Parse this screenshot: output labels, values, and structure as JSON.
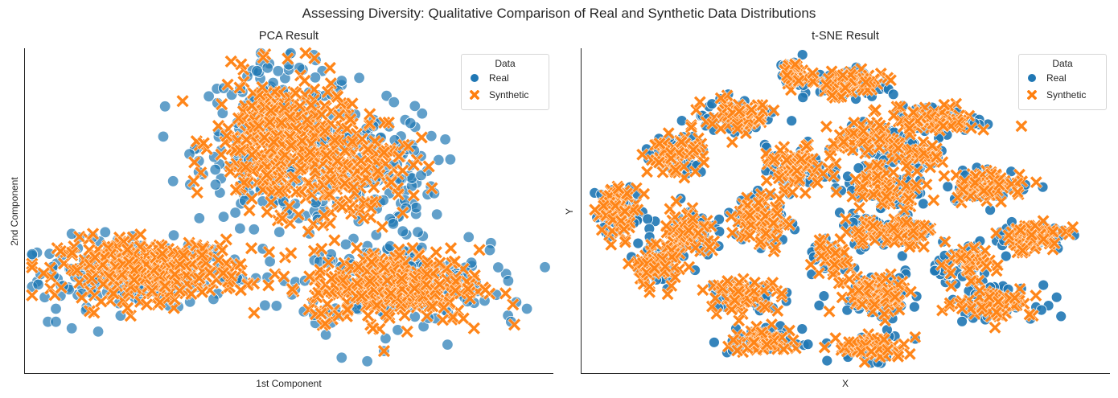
{
  "figure": {
    "title": "Assessing Diversity: Qualitative Comparison of Real and Synthetic Data Distributions"
  },
  "legend": {
    "title": "Data",
    "entries": [
      "Real",
      "Synthetic"
    ]
  },
  "colors": {
    "real": "#1f77b4",
    "synthetic": "#ff7f0e"
  },
  "chart_data": [
    {
      "type": "scatter",
      "title": "PCA Result",
      "xlabel": "1st Component",
      "ylabel": "2nd Component",
      "ticks": "none",
      "grid": false,
      "legend_position": "top-right",
      "series": [
        {
          "name": "Real",
          "marker": "circle",
          "color": "#1f77b4",
          "alpha": 0.7,
          "clusters": [
            {
              "x": 0.21,
              "y": 0.31,
              "sx": 0.09,
              "sy": 0.05,
              "n": 230
            },
            {
              "x": 0.48,
              "y": 0.7,
              "sx": 0.075,
              "sy": 0.12,
              "n": 260
            },
            {
              "x": 0.7,
              "y": 0.28,
              "sx": 0.09,
              "sy": 0.06,
              "n": 230
            },
            {
              "x": 0.64,
              "y": 0.62,
              "sx": 0.07,
              "sy": 0.1,
              "n": 140
            }
          ],
          "outliers": [
            [
              0.045,
              0.16
            ],
            [
              0.06,
              0.16
            ],
            [
              0.09,
              0.14
            ],
            [
              0.14,
              0.13
            ],
            [
              0.33,
              0.62
            ],
            [
              0.44,
              0.93
            ],
            [
              0.46,
              0.94
            ],
            [
              0.48,
              0.93
            ],
            [
              0.5,
              0.95
            ],
            [
              0.52,
              0.94
            ],
            [
              0.55,
              0.91
            ],
            [
              0.6,
              0.9
            ],
            [
              0.66,
              0.76
            ],
            [
              0.72,
              0.78
            ],
            [
              0.73,
              0.77
            ],
            [
              0.75,
              0.61
            ],
            [
              0.78,
              0.49
            ],
            [
              0.84,
              0.42
            ],
            [
              0.88,
              0.38
            ],
            [
              0.93,
              0.22
            ],
            [
              0.95,
              0.2
            ],
            [
              0.92,
              0.16
            ],
            [
              0.6,
              0.05
            ],
            [
              0.68,
              0.07
            ],
            [
              0.8,
              0.09
            ],
            [
              0.57,
              0.12
            ],
            [
              0.06,
              0.2
            ],
            [
              0.09,
              0.43
            ],
            [
              0.13,
              0.42
            ]
          ]
        },
        {
          "name": "Synthetic",
          "marker": "x",
          "color": "#ff7f0e",
          "alpha": 0.95,
          "clusters": [
            {
              "x": 0.24,
              "y": 0.32,
              "sx": 0.085,
              "sy": 0.045,
              "n": 330
            },
            {
              "x": 0.48,
              "y": 0.71,
              "sx": 0.06,
              "sy": 0.1,
              "n": 330
            },
            {
              "x": 0.7,
              "y": 0.27,
              "sx": 0.08,
              "sy": 0.055,
              "n": 320
            },
            {
              "x": 0.62,
              "y": 0.64,
              "sx": 0.055,
              "sy": 0.085,
              "n": 150
            }
          ],
          "outliers": [
            [
              0.45,
              0.88
            ],
            [
              0.53,
              0.9
            ],
            [
              0.62,
              0.83
            ],
            [
              0.68,
              0.68
            ],
            [
              0.83,
              0.17
            ],
            [
              0.85,
              0.14
            ],
            [
              0.68,
              0.07
            ],
            [
              0.13,
              0.43
            ]
          ]
        }
      ]
    },
    {
      "type": "scatter",
      "title": "t-SNE Result",
      "xlabel": "X",
      "ylabel": "Y",
      "ticks": "none",
      "grid": false,
      "legend_position": "top-right",
      "series": [
        {
          "name": "Real",
          "marker": "circle",
          "color": "#1f77b4",
          "clusters": [
            {
              "x": 0.4,
              "y": 0.92,
              "sx": 0.012,
              "sy": 0.022,
              "n": 30
            },
            {
              "x": 0.5,
              "y": 0.89,
              "sx": 0.04,
              "sy": 0.025,
              "n": 55
            },
            {
              "x": 0.67,
              "y": 0.78,
              "sx": 0.04,
              "sy": 0.022,
              "n": 50
            },
            {
              "x": 0.3,
              "y": 0.79,
              "sx": 0.035,
              "sy": 0.03,
              "n": 55
            },
            {
              "x": 0.55,
              "y": 0.72,
              "sx": 0.04,
              "sy": 0.035,
              "n": 60
            },
            {
              "x": 0.64,
              "y": 0.67,
              "sx": 0.02,
              "sy": 0.018,
              "n": 30
            },
            {
              "x": 0.18,
              "y": 0.67,
              "sx": 0.03,
              "sy": 0.03,
              "n": 50
            },
            {
              "x": 0.41,
              "y": 0.63,
              "sx": 0.03,
              "sy": 0.035,
              "n": 55
            },
            {
              "x": 0.58,
              "y": 0.58,
              "sx": 0.04,
              "sy": 0.035,
              "n": 60
            },
            {
              "x": 0.77,
              "y": 0.58,
              "sx": 0.04,
              "sy": 0.025,
              "n": 55
            },
            {
              "x": 0.07,
              "y": 0.5,
              "sx": 0.022,
              "sy": 0.04,
              "n": 55
            },
            {
              "x": 0.2,
              "y": 0.44,
              "sx": 0.025,
              "sy": 0.04,
              "n": 55
            },
            {
              "x": 0.34,
              "y": 0.47,
              "sx": 0.025,
              "sy": 0.045,
              "n": 65
            },
            {
              "x": 0.58,
              "y": 0.44,
              "sx": 0.045,
              "sy": 0.025,
              "n": 60
            },
            {
              "x": 0.85,
              "y": 0.42,
              "sx": 0.035,
              "sy": 0.025,
              "n": 55
            },
            {
              "x": 0.73,
              "y": 0.34,
              "sx": 0.03,
              "sy": 0.025,
              "n": 40
            },
            {
              "x": 0.47,
              "y": 0.35,
              "sx": 0.02,
              "sy": 0.025,
              "n": 30
            },
            {
              "x": 0.14,
              "y": 0.33,
              "sx": 0.025,
              "sy": 0.035,
              "n": 50
            },
            {
              "x": 0.31,
              "y": 0.24,
              "sx": 0.035,
              "sy": 0.025,
              "n": 55
            },
            {
              "x": 0.56,
              "y": 0.25,
              "sx": 0.04,
              "sy": 0.035,
              "n": 65
            },
            {
              "x": 0.78,
              "y": 0.22,
              "sx": 0.04,
              "sy": 0.025,
              "n": 50
            },
            {
              "x": 0.35,
              "y": 0.1,
              "sx": 0.035,
              "sy": 0.02,
              "n": 45
            },
            {
              "x": 0.55,
              "y": 0.08,
              "sx": 0.035,
              "sy": 0.02,
              "n": 45
            }
          ]
        },
        {
          "name": "Synthetic",
          "marker": "x",
          "color": "#ff7f0e",
          "clusters": [
            {
              "x": 0.4,
              "y": 0.92,
              "sx": 0.011,
              "sy": 0.02,
              "n": 35
            },
            {
              "x": 0.5,
              "y": 0.89,
              "sx": 0.038,
              "sy": 0.023,
              "n": 65
            },
            {
              "x": 0.67,
              "y": 0.78,
              "sx": 0.038,
              "sy": 0.021,
              "n": 60
            },
            {
              "x": 0.3,
              "y": 0.79,
              "sx": 0.033,
              "sy": 0.028,
              "n": 65
            },
            {
              "x": 0.55,
              "y": 0.72,
              "sx": 0.038,
              "sy": 0.033,
              "n": 70
            },
            {
              "x": 0.64,
              "y": 0.67,
              "sx": 0.019,
              "sy": 0.017,
              "n": 35
            },
            {
              "x": 0.18,
              "y": 0.67,
              "sx": 0.028,
              "sy": 0.028,
              "n": 60
            },
            {
              "x": 0.41,
              "y": 0.63,
              "sx": 0.028,
              "sy": 0.033,
              "n": 65
            },
            {
              "x": 0.58,
              "y": 0.58,
              "sx": 0.038,
              "sy": 0.033,
              "n": 70
            },
            {
              "x": 0.77,
              "y": 0.58,
              "sx": 0.038,
              "sy": 0.023,
              "n": 65
            },
            {
              "x": 0.07,
              "y": 0.5,
              "sx": 0.02,
              "sy": 0.038,
              "n": 65
            },
            {
              "x": 0.2,
              "y": 0.44,
              "sx": 0.023,
              "sy": 0.038,
              "n": 65
            },
            {
              "x": 0.34,
              "y": 0.47,
              "sx": 0.023,
              "sy": 0.043,
              "n": 75
            },
            {
              "x": 0.58,
              "y": 0.44,
              "sx": 0.043,
              "sy": 0.023,
              "n": 70
            },
            {
              "x": 0.85,
              "y": 0.42,
              "sx": 0.033,
              "sy": 0.023,
              "n": 65
            },
            {
              "x": 0.73,
              "y": 0.34,
              "sx": 0.028,
              "sy": 0.023,
              "n": 45
            },
            {
              "x": 0.47,
              "y": 0.35,
              "sx": 0.019,
              "sy": 0.023,
              "n": 35
            },
            {
              "x": 0.14,
              "y": 0.33,
              "sx": 0.023,
              "sy": 0.033,
              "n": 60
            },
            {
              "x": 0.31,
              "y": 0.24,
              "sx": 0.033,
              "sy": 0.023,
              "n": 65
            },
            {
              "x": 0.56,
              "y": 0.25,
              "sx": 0.038,
              "sy": 0.033,
              "n": 75
            },
            {
              "x": 0.78,
              "y": 0.22,
              "sx": 0.038,
              "sy": 0.023,
              "n": 60
            },
            {
              "x": 0.35,
              "y": 0.1,
              "sx": 0.033,
              "sy": 0.019,
              "n": 55
            },
            {
              "x": 0.55,
              "y": 0.08,
              "sx": 0.033,
              "sy": 0.019,
              "n": 55
            }
          ]
        }
      ]
    }
  ]
}
